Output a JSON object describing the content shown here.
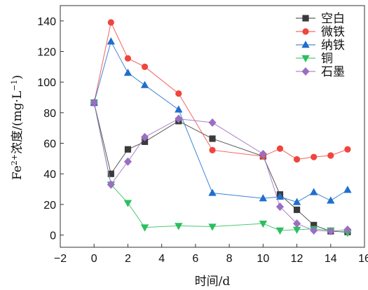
{
  "chart_data": {
    "type": "line",
    "title": "",
    "xlabel": "时间/d",
    "ylabel": {
      "base": "Fe",
      "sup": "2+",
      "text": "浓度/(mg·L",
      "sup2": "−1",
      "end": ")"
    },
    "xlim": [
      -2,
      16
    ],
    "ylim": [
      -8,
      150
    ],
    "x_ticks": [
      -2,
      0,
      2,
      4,
      6,
      8,
      10,
      12,
      14,
      16
    ],
    "y_ticks": [
      0,
      20,
      40,
      60,
      80,
      100,
      120,
      140
    ],
    "x_tick_labels": [
      "−2",
      "0",
      "2",
      "4",
      "6",
      "8",
      "10",
      "12",
      "14",
      "16"
    ],
    "y_tick_labels": [
      "0",
      "20",
      "40",
      "60",
      "80",
      "100",
      "120",
      "140"
    ],
    "grid": false,
    "legend_position": "top-right",
    "series": [
      {
        "name": "空白",
        "color": "#3a3a3a",
        "marker": "square",
        "points": [
          [
            0,
            86.5
          ],
          [
            1,
            40
          ],
          [
            2,
            56
          ],
          [
            3,
            61
          ],
          [
            5,
            74.5
          ],
          [
            7,
            63
          ],
          [
            10,
            51.5
          ],
          [
            11,
            26.5
          ],
          [
            12,
            16.5
          ],
          [
            13,
            6.5
          ],
          [
            14,
            2.5
          ],
          [
            15,
            2
          ]
        ]
      },
      {
        "name": "微铁",
        "color": "#f0453e",
        "marker": "circle",
        "points": [
          [
            0,
            86.5
          ],
          [
            1,
            139
          ],
          [
            2,
            115.5
          ],
          [
            3,
            110
          ],
          [
            5,
            92.5
          ],
          [
            7,
            55.5
          ],
          [
            10,
            51.5
          ],
          [
            11,
            56.5
          ],
          [
            12,
            49.5
          ],
          [
            13,
            51
          ],
          [
            14,
            52
          ],
          [
            15,
            56
          ]
        ]
      },
      {
        "name": "纳铁",
        "color": "#1f6fce",
        "marker": "triangle-up",
        "points": [
          [
            0,
            86.5
          ],
          [
            1,
            126.5
          ],
          [
            2,
            106
          ],
          [
            3,
            98
          ],
          [
            5,
            82
          ],
          [
            7,
            27.5
          ],
          [
            10,
            24
          ],
          [
            11,
            25
          ],
          [
            12,
            21.5
          ],
          [
            13,
            28
          ],
          [
            14,
            22.5
          ],
          [
            15,
            29.5
          ]
        ]
      },
      {
        "name": "铜",
        "color": "#2bbf5e",
        "marker": "triangle-down",
        "points": [
          [
            0,
            86.5
          ],
          [
            1,
            33
          ],
          [
            2,
            21
          ],
          [
            3,
            5
          ],
          [
            5,
            6
          ],
          [
            7,
            5.5
          ],
          [
            10,
            7.5
          ],
          [
            11,
            3
          ],
          [
            12,
            3.5
          ],
          [
            13,
            4
          ],
          [
            14,
            3
          ],
          [
            15,
            1.5
          ]
        ]
      },
      {
        "name": "石墨",
        "color": "#9b6ec2",
        "marker": "diamond",
        "points": [
          [
            0,
            86.5
          ],
          [
            1,
            33
          ],
          [
            2,
            48
          ],
          [
            3,
            64
          ],
          [
            5,
            76
          ],
          [
            7,
            73.5
          ],
          [
            10,
            53
          ],
          [
            11,
            18.5
          ],
          [
            12,
            7.5
          ],
          [
            13,
            3
          ],
          [
            14,
            2.5
          ],
          [
            15,
            3.5
          ]
        ]
      }
    ]
  }
}
